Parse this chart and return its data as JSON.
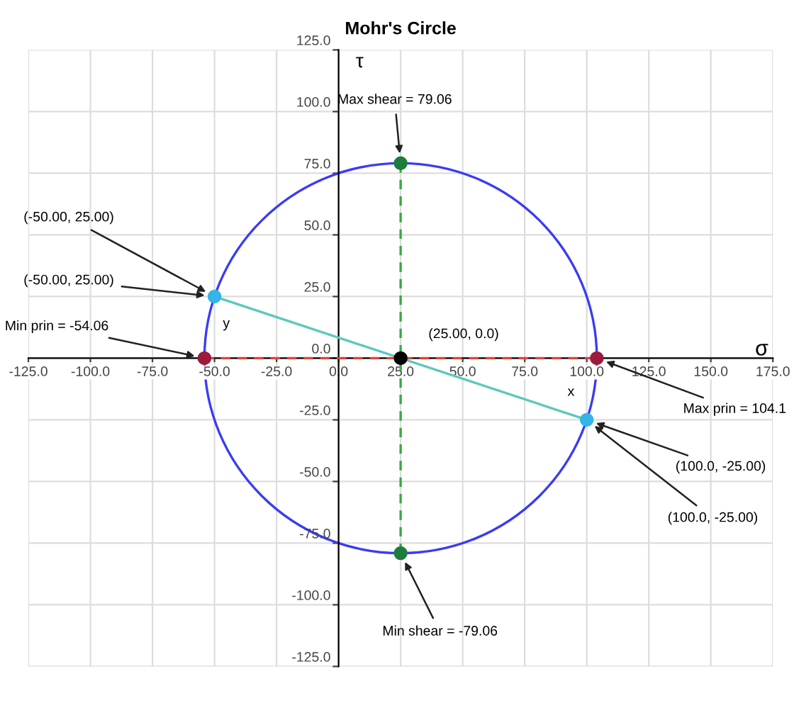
{
  "chart_data": {
    "type": "line",
    "title": "Mohr's Circle",
    "xlabel": "σ",
    "ylabel": "τ",
    "xlim": [
      -125,
      175
    ],
    "ylim": [
      -125,
      125
    ],
    "xticks": [
      {
        "value": -125,
        "label": "-125.0"
      },
      {
        "value": -100,
        "label": "-100.0"
      },
      {
        "value": -75,
        "label": "-75.0"
      },
      {
        "value": -50,
        "label": "-50.0"
      },
      {
        "value": -25,
        "label": "-25.0"
      },
      {
        "value": 0,
        "label": "0.0"
      },
      {
        "value": 25,
        "label": "25.0"
      },
      {
        "value": 50,
        "label": "50.0"
      },
      {
        "value": 75,
        "label": "75.0"
      },
      {
        "value": 100,
        "label": "100.0"
      },
      {
        "value": 125,
        "label": "125.0"
      },
      {
        "value": 150,
        "label": "150.0"
      },
      {
        "value": 175,
        "label": "175.0"
      }
    ],
    "yticks": [
      {
        "value": -125,
        "label": "-125.0"
      },
      {
        "value": -100,
        "label": "-100.0"
      },
      {
        "value": -75,
        "label": "-75.0"
      },
      {
        "value": -50,
        "label": "-50.0"
      },
      {
        "value": -25,
        "label": "-25.0"
      },
      {
        "value": 0,
        "label": "0.0"
      },
      {
        "value": 25,
        "label": "25.0"
      },
      {
        "value": 50,
        "label": "50.0"
      },
      {
        "value": 75,
        "label": "75.0"
      },
      {
        "value": 100,
        "label": "100.0"
      },
      {
        "value": 125,
        "label": "125.0"
      }
    ],
    "grid": true,
    "legend": false,
    "series": [
      {
        "color": "#5cc8bb",
        "marker": "none",
        "line_style": "solid",
        "x": [
          -50,
          100
        ],
        "values": [
          25,
          -25
        ]
      },
      {
        "color": "#e0443a",
        "marker": "none",
        "line_style": "dashed",
        "x": [
          -54.06,
          104.06
        ],
        "values": [
          0,
          0
        ]
      },
      {
        "color": "#3aa845",
        "marker": "none",
        "line_style": "dashed",
        "x": [
          25,
          25
        ],
        "values": [
          79.06,
          -79.06
        ]
      },
      {
        "type": "scatter",
        "color": "#33b5e8",
        "marker": "circle",
        "x": [
          -50,
          100
        ],
        "values": [
          25,
          -25
        ]
      },
      {
        "type": "scatter",
        "color": "#9b1b3c",
        "marker": "circle",
        "x": [
          -54.06,
          104.06
        ],
        "values": [
          0,
          0
        ]
      },
      {
        "type": "scatter",
        "color": "#1d7d3c",
        "marker": "circle",
        "x": [
          25,
          25
        ],
        "values": [
          79.06,
          -79.06
        ]
      },
      {
        "type": "scatter",
        "color": "#000000",
        "marker": "circle",
        "x": [
          25
        ],
        "values": [
          0
        ]
      }
    ],
    "annotations": [
      {
        "text": "Max shear = 79.06",
        "x": 25,
        "y": 79.06
      },
      {
        "text": "Min shear = -79.06",
        "x": 25,
        "y": -79.06
      },
      {
        "text": "Min prin = -54.06",
        "x": -54.06,
        "y": 0
      },
      {
        "text": "Max prin = 104.1",
        "x": 104.06,
        "y": 0
      },
      {
        "text": "(-50.00, 25.00)",
        "x": -50,
        "y": 25
      },
      {
        "text": "(-50.00, 25.00)",
        "x": -50,
        "y": 25
      },
      {
        "text": "(100.0, -25.00)",
        "x": 100,
        "y": -25
      },
      {
        "text": "(100.0, -25.00)",
        "x": 100,
        "y": -25
      },
      {
        "text": "(25.00, 0.0)",
        "x": 25,
        "y": 0
      },
      {
        "text": "x",
        "x": 100,
        "y": -25
      },
      {
        "text": "y",
        "x": -50,
        "y": 25
      }
    ]
  }
}
